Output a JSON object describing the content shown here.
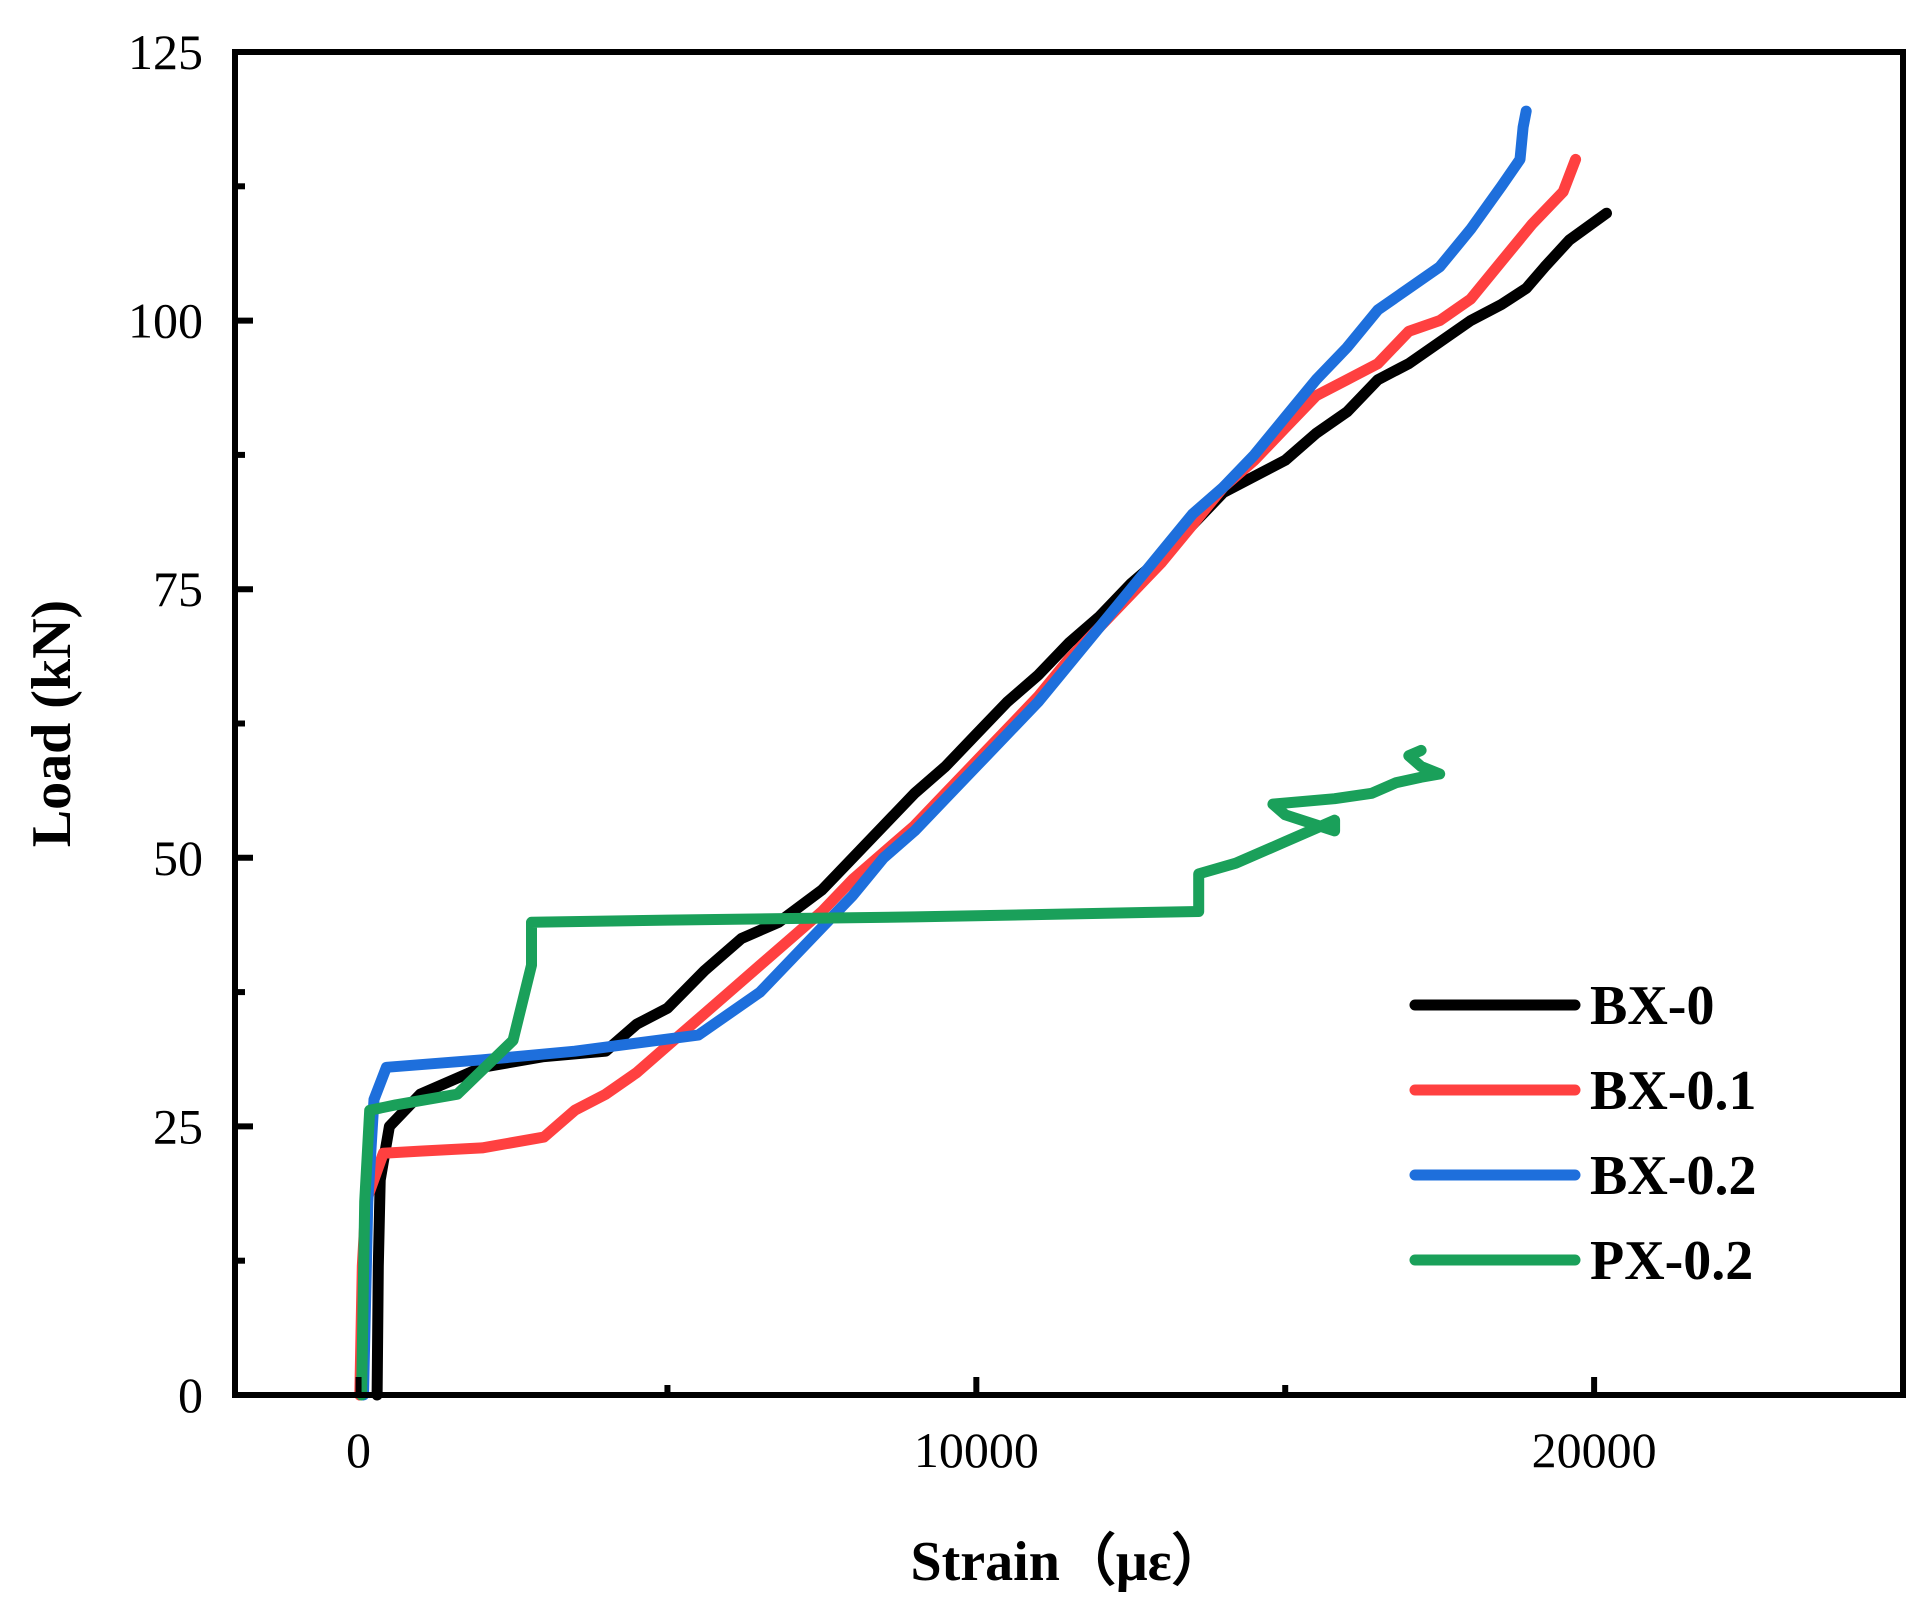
{
  "chart_data": {
    "type": "line",
    "title": "",
    "xlabel": "Strain（με）",
    "ylabel": "Load (kN)",
    "xlim": [
      -2000,
      25000
    ],
    "ylim": [
      0,
      125
    ],
    "xticks": [
      0,
      10000,
      20000
    ],
    "xticks_minor": [
      5000,
      15000
    ],
    "yticks": [
      0,
      25,
      50,
      75,
      100,
      125
    ],
    "yticks_minor": [
      12.5,
      37.5,
      62.5,
      87.5,
      112.5
    ],
    "grid": false,
    "legend_position": "bottom-right",
    "series": [
      {
        "name": "BX-0",
        "color": "#000000",
        "points": [
          [
            300,
            0
          ],
          [
            320,
            12
          ],
          [
            350,
            20
          ],
          [
            500,
            25
          ],
          [
            1000,
            28
          ],
          [
            2000,
            30.5
          ],
          [
            3000,
            31.5
          ],
          [
            4000,
            32
          ],
          [
            4500,
            34.5
          ],
          [
            5000,
            36
          ],
          [
            5600,
            39.5
          ],
          [
            6200,
            42.5
          ],
          [
            6800,
            44
          ],
          [
            7500,
            47
          ],
          [
            8000,
            50
          ],
          [
            8500,
            53
          ],
          [
            9000,
            56
          ],
          [
            9500,
            58.5
          ],
          [
            10000,
            61.5
          ],
          [
            10500,
            64.5
          ],
          [
            11000,
            67
          ],
          [
            11500,
            70
          ],
          [
            12000,
            72.5
          ],
          [
            12500,
            75.5
          ],
          [
            13000,
            78
          ],
          [
            13500,
            81
          ],
          [
            14000,
            84
          ],
          [
            14500,
            85.5
          ],
          [
            15000,
            87
          ],
          [
            15500,
            89.5
          ],
          [
            16000,
            91.5
          ],
          [
            16500,
            94.5
          ],
          [
            17000,
            96
          ],
          [
            17500,
            98
          ],
          [
            18000,
            100
          ],
          [
            18500,
            101.5
          ],
          [
            18900,
            103
          ],
          [
            19200,
            105
          ],
          [
            19600,
            107.5
          ],
          [
            20200,
            110
          ]
        ]
      },
      {
        "name": "BX-0.1",
        "color": "#ff4040",
        "points": [
          [
            20,
            0
          ],
          [
            60,
            12
          ],
          [
            120,
            18
          ],
          [
            400,
            22.5
          ],
          [
            1000,
            22.7
          ],
          [
            2000,
            23
          ],
          [
            3000,
            24
          ],
          [
            3500,
            26.5
          ],
          [
            4000,
            28
          ],
          [
            4500,
            30
          ],
          [
            5000,
            32.5
          ],
          [
            5500,
            35
          ],
          [
            6000,
            37.5
          ],
          [
            6500,
            40
          ],
          [
            7000,
            42.5
          ],
          [
            7500,
            45
          ],
          [
            8000,
            48
          ],
          [
            8500,
            50.5
          ],
          [
            9000,
            53
          ],
          [
            9500,
            56
          ],
          [
            10000,
            59
          ],
          [
            10500,
            62
          ],
          [
            11000,
            65
          ],
          [
            11500,
            68.5
          ],
          [
            12000,
            71.5
          ],
          [
            12500,
            74.5
          ],
          [
            13000,
            77.5
          ],
          [
            13500,
            81
          ],
          [
            14000,
            84.5
          ],
          [
            14500,
            87
          ],
          [
            15000,
            90
          ],
          [
            15500,
            93
          ],
          [
            16000,
            94.5
          ],
          [
            16500,
            96
          ],
          [
            17000,
            99
          ],
          [
            17500,
            100
          ],
          [
            18000,
            102
          ],
          [
            18500,
            105.5
          ],
          [
            19000,
            109
          ],
          [
            19500,
            112
          ],
          [
            19700,
            115
          ]
        ]
      },
      {
        "name": "BX-0.2",
        "color": "#1e6fdc",
        "points": [
          [
            80,
            0
          ],
          [
            150,
            18
          ],
          [
            250,
            27.5
          ],
          [
            450,
            30.5
          ],
          [
            2000,
            31.2
          ],
          [
            3500,
            32
          ],
          [
            5500,
            33.5
          ],
          [
            6500,
            37.5
          ],
          [
            7500,
            43.5
          ],
          [
            8000,
            46.5
          ],
          [
            8500,
            50
          ],
          [
            9000,
            52.5
          ],
          [
            9500,
            55.5
          ],
          [
            10000,
            58.5
          ],
          [
            10500,
            61.5
          ],
          [
            11000,
            64.5
          ],
          [
            11500,
            68
          ],
          [
            12000,
            71.5
          ],
          [
            12500,
            75
          ],
          [
            13000,
            78.5
          ],
          [
            13500,
            82
          ],
          [
            14000,
            84.5
          ],
          [
            14500,
            87.5
          ],
          [
            15000,
            91
          ],
          [
            15500,
            94.5
          ],
          [
            16000,
            97.5
          ],
          [
            16500,
            101
          ],
          [
            17000,
            103
          ],
          [
            17500,
            105
          ],
          [
            18000,
            108.5
          ],
          [
            18500,
            112.5
          ],
          [
            18800,
            115
          ],
          [
            18850,
            118
          ],
          [
            18900,
            119.5
          ]
        ]
      },
      {
        "name": "PX-0.2",
        "color": "#1aa05a",
        "points": [
          [
            50,
            0
          ],
          [
            100,
            18
          ],
          [
            180,
            26.5
          ],
          [
            600,
            27
          ],
          [
            1600,
            28
          ],
          [
            2500,
            33
          ],
          [
            2800,
            40
          ],
          [
            2800,
            44
          ],
          [
            5000,
            44.2
          ],
          [
            9000,
            44.5
          ],
          [
            13600,
            45
          ],
          [
            13600,
            48.5
          ],
          [
            14200,
            49.5
          ],
          [
            15000,
            51.5
          ],
          [
            15800,
            53.5
          ],
          [
            15800,
            52.5
          ],
          [
            15000,
            54
          ],
          [
            14800,
            55
          ],
          [
            15800,
            55.5
          ],
          [
            16400,
            56
          ],
          [
            16800,
            57
          ],
          [
            17200,
            57.5
          ],
          [
            17500,
            57.8
          ],
          [
            17200,
            58.5
          ],
          [
            17000,
            59.5
          ],
          [
            17200,
            60
          ]
        ]
      }
    ]
  }
}
